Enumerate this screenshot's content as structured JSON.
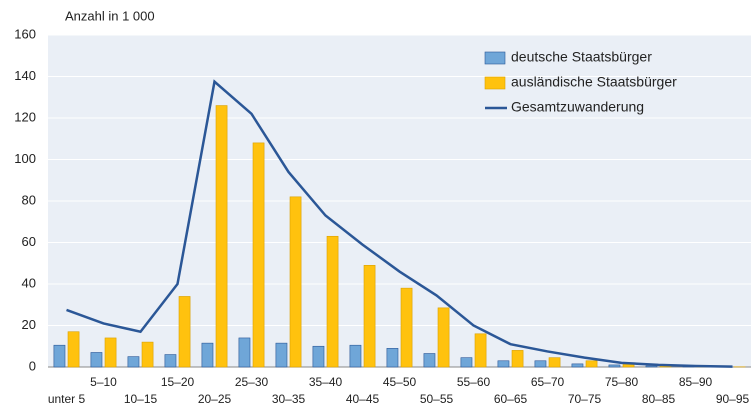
{
  "chart_data": {
    "type": "bar",
    "y_label": "Anzahl in 1 000",
    "categories": [
      "unter 5",
      "5–10",
      "10–15",
      "15–20",
      "20–25",
      "25–30",
      "30–35",
      "35–40",
      "40–45",
      "45–50",
      "50–55",
      "55–60",
      "60–65",
      "65–70",
      "70–75",
      "75–80",
      "80–85",
      "85–90",
      "90–95"
    ],
    "series": [
      {
        "name": "deutsche Staatsbürger",
        "type": "bar",
        "color": "#6fa6d8",
        "values": [
          10.5,
          7,
          5,
          6,
          11.5,
          14,
          11.5,
          10,
          10.5,
          9,
          6.5,
          4.5,
          3,
          3,
          1.5,
          1,
          0.5,
          0.3,
          0.1
        ]
      },
      {
        "name": "ausländische Staatsbürger",
        "type": "bar",
        "color": "#ffc20e",
        "values": [
          17,
          14,
          12,
          34,
          126,
          108,
          82,
          63,
          49,
          38,
          28.5,
          16,
          8,
          4.5,
          3,
          1.5,
          0.8,
          0.3,
          0.1
        ]
      },
      {
        "name": "Gesamtzuwanderung",
        "type": "line",
        "color": "#2b5797",
        "values": [
          27.5,
          21,
          17,
          40,
          137.5,
          122,
          94,
          73,
          59,
          46,
          34.5,
          20,
          11,
          7.5,
          4.5,
          2,
          1,
          0.5,
          0.2
        ]
      }
    ],
    "ylim": [
      0,
      160
    ],
    "yticks": [
      0,
      20,
      40,
      60,
      80,
      100,
      120,
      140,
      160
    ],
    "grid": true,
    "legend": "upper right"
  }
}
